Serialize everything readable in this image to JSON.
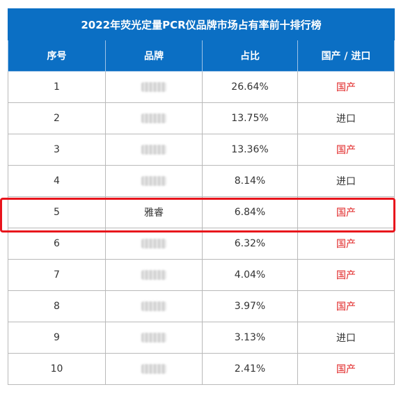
{
  "table": {
    "title": "2022年荧光定量PCR仪品牌市场占有率前十排行榜",
    "headers": [
      "序号",
      "品牌",
      "占比",
      "国产 / 进口"
    ],
    "rows": [
      {
        "rank": "1",
        "brand": "",
        "share": "26.64%",
        "origin": "国产",
        "brand_blurred": true
      },
      {
        "rank": "2",
        "brand": "",
        "share": "13.75%",
        "origin": "进口",
        "brand_blurred": true
      },
      {
        "rank": "3",
        "brand": "",
        "share": "13.36%",
        "origin": "国产",
        "brand_blurred": true
      },
      {
        "rank": "4",
        "brand": "",
        "share": "8.14%",
        "origin": "进口",
        "brand_blurred": true
      },
      {
        "rank": "5",
        "brand": "雅睿",
        "share": "6.84%",
        "origin": "国产",
        "brand_blurred": false
      },
      {
        "rank": "6",
        "brand": "",
        "share": "6.32%",
        "origin": "国产",
        "brand_blurred": true
      },
      {
        "rank": "7",
        "brand": "",
        "share": "4.04%",
        "origin": "国产",
        "brand_blurred": true
      },
      {
        "rank": "8",
        "brand": "",
        "share": "3.97%",
        "origin": "国产",
        "brand_blurred": true
      },
      {
        "rank": "9",
        "brand": "",
        "share": "3.13%",
        "origin": "进口",
        "brand_blurred": true
      },
      {
        "rank": "10",
        "brand": "",
        "share": "2.41%",
        "origin": "国产",
        "brand_blurred": true
      }
    ]
  },
  "colors": {
    "header_bg": "#0b6fc4",
    "domestic_text": "#e02020",
    "highlight_border": "#e8141c"
  }
}
